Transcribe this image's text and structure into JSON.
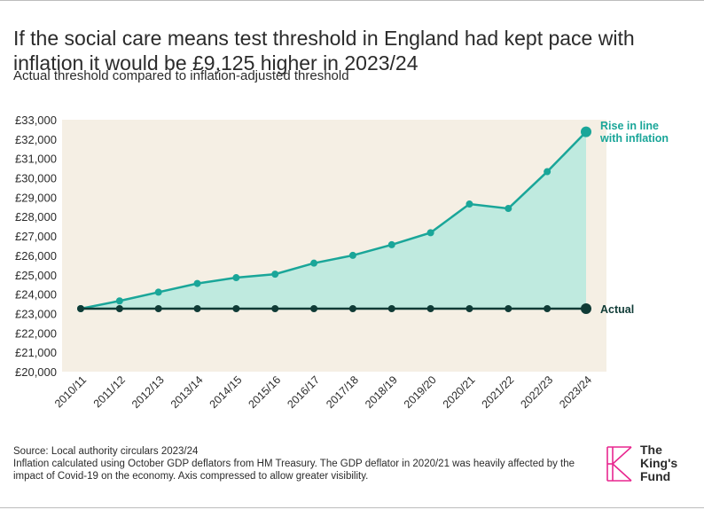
{
  "header": {
    "title": "If the social care means test threshold in England had kept pace with inflation it would be £9,125 higher in 2023/24",
    "subtitle": "Actual threshold compared to inflation-adjusted threshold"
  },
  "chart_data": {
    "type": "line",
    "categories": [
      "2010/11",
      "2011/12",
      "2012/13",
      "2013/14",
      "2014/15",
      "2015/16",
      "2016/17",
      "2017/18",
      "2018/19",
      "2019/20",
      "2020/21",
      "2021/22",
      "2022/23",
      "2023/24"
    ],
    "series": [
      {
        "name": "Rise in line with inflation",
        "label_lines": [
          "Rise in line",
          "with inflation"
        ],
        "color": "#1aa699",
        "fill": "#bfeadf",
        "values": [
          23250,
          23650,
          24100,
          24550,
          24850,
          25030,
          25600,
          26000,
          26550,
          27170,
          28650,
          28420,
          30320,
          32375
        ]
      },
      {
        "name": "Actual",
        "label_lines": [
          "Actual"
        ],
        "color": "#0f3b36",
        "values": [
          23250,
          23250,
          23250,
          23250,
          23250,
          23250,
          23250,
          23250,
          23250,
          23250,
          23250,
          23250,
          23250,
          23250
        ]
      }
    ],
    "y_ticks": [
      "£20,000",
      "£21,000",
      "£22,000",
      "£23,000",
      "£24,000",
      "£25,000",
      "£26,000",
      "£27,000",
      "£28,000",
      "£29,000",
      "£30,000",
      "£31,000",
      "£32,000",
      "£33,000"
    ],
    "ylim": [
      20000,
      33000
    ],
    "plot_background": "#f5efe4",
    "title": "Actual threshold compared to inflation-adjusted threshold",
    "xlabel": "",
    "ylabel": ""
  },
  "footer": {
    "source": "Source: Local authority circulars 2023/24",
    "note": "Inflation calculated using October GDP deflators from HM Treasury. The GDP deflator in 2020/21 was heavily affected by the impact of Covid-19 on the economy. Axis compressed to allow greater visibility."
  },
  "logo": {
    "line1": "The",
    "line2": "King's",
    "line3": "Fund",
    "icon": "kings-fund-k-icon",
    "color": "#e8278f"
  }
}
